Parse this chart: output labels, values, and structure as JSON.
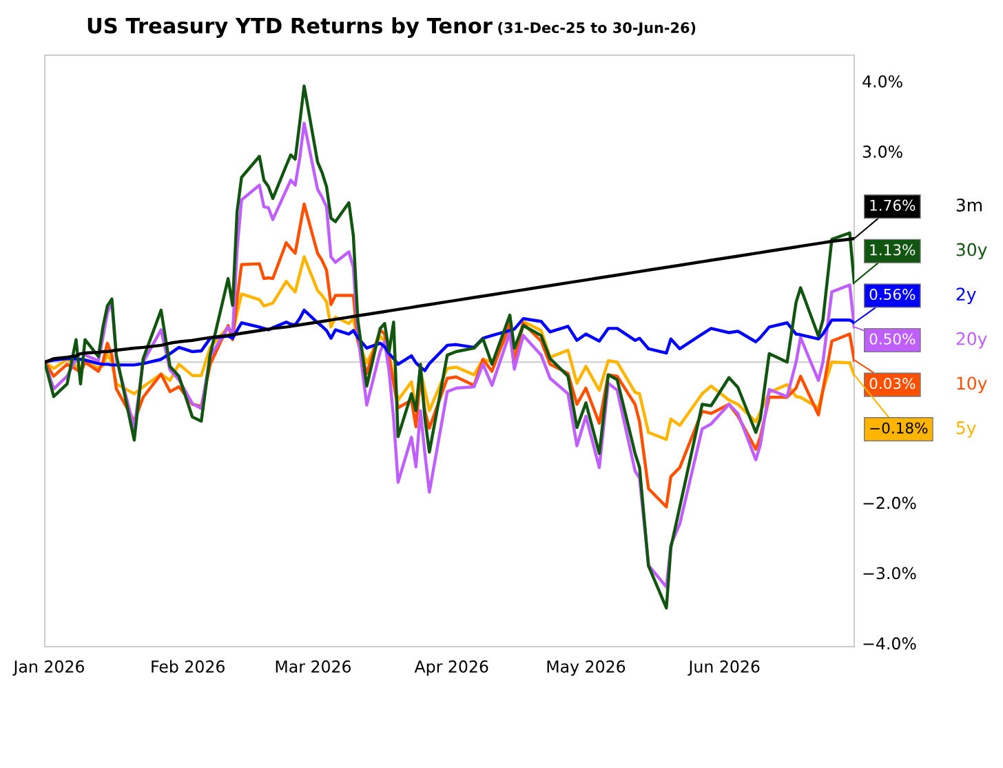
{
  "chart_data": {
    "type": "line",
    "title": "US Treasury YTD Returns by Tenor",
    "subtitle": "(31-Dec-25 to 30-Jun-26)",
    "x": [
      "2025-12-31",
      "2026-01-02",
      "2026-01-05",
      "2026-01-07",
      "2026-01-08",
      "2026-01-09",
      "2026-01-12",
      "2026-01-13",
      "2026-01-14",
      "2026-01-15",
      "2026-01-16",
      "2026-01-20",
      "2026-01-22",
      "2026-01-26",
      "2026-01-28",
      "2026-01-30",
      "2026-02-02",
      "2026-02-04",
      "2026-02-06",
      "2026-02-10",
      "2026-02-11",
      "2026-02-12",
      "2026-02-13",
      "2026-02-17",
      "2026-02-18",
      "2026-02-19",
      "2026-02-20",
      "2026-02-23",
      "2026-02-24",
      "2026-02-25",
      "2026-02-26",
      "2026-02-27",
      "2026-03-02",
      "2026-03-03",
      "2026-03-04",
      "2026-03-05",
      "2026-03-06",
      "2026-03-09",
      "2026-03-10",
      "2026-03-11",
      "2026-03-13",
      "2026-03-16",
      "2026-03-17",
      "2026-03-18",
      "2026-03-19",
      "2026-03-20",
      "2026-03-23",
      "2026-03-24",
      "2026-03-25",
      "2026-03-26",
      "2026-03-27",
      "2026-03-31",
      "2026-04-02",
      "2026-04-06",
      "2026-04-08",
      "2026-04-10",
      "2026-04-14",
      "2026-04-15",
      "2026-04-17",
      "2026-04-21",
      "2026-04-23",
      "2026-04-27",
      "2026-04-29",
      "2026-05-01",
      "2026-05-04",
      "2026-05-06",
      "2026-05-08",
      "2026-05-12",
      "2026-05-13",
      "2026-05-15",
      "2026-05-19",
      "2026-05-20",
      "2026-05-22",
      "2026-05-27",
      "2026-05-29",
      "2026-06-02",
      "2026-06-04",
      "2026-06-08",
      "2026-06-09",
      "2026-06-11",
      "2026-06-15",
      "2026-06-17",
      "2026-06-18",
      "2026-06-22",
      "2026-06-23",
      "2026-06-25",
      "2026-06-29",
      "2026-06-30"
    ],
    "series": [
      {
        "name": "3m",
        "color": "#000000",
        "values": [
          0,
          0.05,
          0.07,
          0.09,
          0.12,
          0.13,
          0.14,
          0.15,
          0.15,
          0.16,
          0.17,
          0.2,
          0.21,
          0.24,
          0.27,
          0.29,
          0.31,
          0.33,
          0.35,
          0.38,
          0.39,
          0.4,
          0.41,
          0.45,
          0.46,
          0.47,
          0.48,
          0.5,
          0.51,
          0.52,
          0.53,
          0.54,
          0.57,
          0.58,
          0.59,
          0.6,
          0.61,
          0.64,
          0.65,
          0.66,
          0.68,
          0.71,
          0.72,
          0.73,
          0.74,
          0.75,
          0.78,
          0.79,
          0.8,
          0.81,
          0.82,
          0.86,
          0.88,
          0.92,
          0.94,
          0.96,
          1.0,
          1.01,
          1.03,
          1.07,
          1.09,
          1.13,
          1.15,
          1.17,
          1.2,
          1.22,
          1.24,
          1.28,
          1.29,
          1.31,
          1.35,
          1.36,
          1.38,
          1.43,
          1.45,
          1.49,
          1.51,
          1.55,
          1.56,
          1.58,
          1.62,
          1.64,
          1.65,
          1.69,
          1.7,
          1.72,
          1.75,
          1.76
        ]
      },
      {
        "name": "30y",
        "color": "#115511",
        "values": [
          0,
          -0.49,
          -0.31,
          0.32,
          -0.31,
          0.32,
          0.08,
          0.5,
          0.8,
          0.9,
          0.1,
          -1.11,
          0.05,
          0.74,
          -0.06,
          -0.2,
          -0.78,
          -0.84,
          0.11,
          1.19,
          0.81,
          2.14,
          2.63,
          2.93,
          2.59,
          2.5,
          2.33,
          2.8,
          2.95,
          2.89,
          3.4,
          3.93,
          2.85,
          2.7,
          2.5,
          2.05,
          2.0,
          2.27,
          1.8,
          0.6,
          -0.34,
          0.48,
          0.55,
          0.15,
          0.57,
          -1.06,
          -0.45,
          -0.69,
          -0.03,
          -0.8,
          -1.28,
          0.1,
          0.15,
          0.2,
          0.33,
          -0.03,
          0.67,
          0.2,
          0.52,
          0.38,
          0.05,
          -0.2,
          -0.93,
          -0.58,
          -1.3,
          -0.18,
          -0.25,
          -1.3,
          -1.5,
          -2.9,
          -3.5,
          -2.64,
          -2.06,
          -0.6,
          -0.62,
          -0.22,
          -0.36,
          -1.0,
          -0.81,
          0.12,
          0.0,
          0.85,
          1.06,
          0.37,
          0.6,
          1.75,
          1.84,
          1.13
        ]
      },
      {
        "name": "2y",
        "color": "#0000ff",
        "values": [
          0,
          0.03,
          0.05,
          0.05,
          0.04,
          0.03,
          -0.02,
          -0.03,
          -0.03,
          -0.04,
          -0.04,
          -0.04,
          -0.02,
          0.04,
          0.12,
          0.21,
          0.15,
          0.16,
          0.34,
          0.37,
          0.34,
          0.45,
          0.56,
          0.5,
          0.48,
          0.46,
          0.49,
          0.57,
          0.54,
          0.53,
          0.62,
          0.74,
          0.56,
          0.51,
          0.45,
          0.34,
          0.46,
          0.4,
          0.45,
          0.35,
          0.2,
          0.27,
          0.22,
          0.12,
          0.05,
          -0.03,
          0.09,
          -0.01,
          -0.07,
          -0.12,
          -0.02,
          0.24,
          0.25,
          0.21,
          0.34,
          0.38,
          0.45,
          0.47,
          0.62,
          0.58,
          0.43,
          0.51,
          0.31,
          0.4,
          0.3,
          0.48,
          0.48,
          0.31,
          0.34,
          0.19,
          0.13,
          0.33,
          0.19,
          0.4,
          0.48,
          0.42,
          0.44,
          0.29,
          0.35,
          0.5,
          0.56,
          0.4,
          0.39,
          0.33,
          0.4,
          0.6,
          0.6,
          0.56
        ]
      },
      {
        "name": "20y",
        "color": "#bf5fff",
        "values": [
          0,
          -0.38,
          -0.2,
          0.05,
          null,
          0.1,
          0.02,
          0.35,
          0.7,
          0.85,
          0.05,
          -0.94,
          0.0,
          0.46,
          -0.11,
          -0.25,
          -0.59,
          -0.66,
          0.08,
          0.5,
          0.4,
          1.6,
          2.31,
          2.52,
          2.21,
          2.2,
          2.03,
          2.45,
          2.59,
          2.52,
          2.9,
          3.4,
          2.46,
          2.35,
          2.21,
          1.5,
          1.42,
          1.57,
          1.35,
          0.4,
          -0.61,
          0.15,
          0.29,
          -0.13,
          -0.8,
          -1.71,
          -1.07,
          -1.49,
          -0.69,
          -1.3,
          -1.85,
          -0.42,
          -0.37,
          -0.35,
          -0.03,
          -0.33,
          0.42,
          -0.1,
          0.38,
          0.1,
          -0.23,
          -0.45,
          -1.19,
          -0.77,
          -1.5,
          -0.3,
          -0.4,
          -1.55,
          -1.65,
          -2.89,
          -3.2,
          -2.6,
          -2.3,
          -0.95,
          -0.88,
          -0.6,
          -0.73,
          -1.39,
          -1.18,
          -0.39,
          -0.49,
          0.0,
          0.35,
          -0.26,
          0.0,
          1.0,
          1.1,
          0.5
        ]
      },
      {
        "name": "10y",
        "color": "#ff5000",
        "values": [
          0,
          -0.2,
          -0.03,
          -0.1,
          -0.15,
          0.0,
          -0.13,
          0.0,
          0.27,
          0.1,
          -0.38,
          -0.84,
          -0.5,
          -0.17,
          -0.42,
          -0.35,
          -0.6,
          -0.63,
          -0.03,
          0.52,
          0.32,
          0.9,
          1.39,
          1.4,
          1.19,
          1.2,
          1.19,
          1.7,
          1.62,
          1.55,
          1.9,
          2.25,
          1.55,
          1.45,
          1.31,
          0.82,
          0.95,
          0.95,
          0.95,
          0.3,
          -0.16,
          0.46,
          0.4,
          0.06,
          -0.3,
          -0.65,
          -0.54,
          -0.92,
          -0.2,
          -0.7,
          -0.94,
          -0.23,
          -0.21,
          -0.33,
          0.04,
          -0.13,
          0.55,
          0.0,
          0.55,
          0.3,
          -0.03,
          -0.16,
          -0.6,
          -0.37,
          -0.87,
          -0.18,
          -0.2,
          -0.6,
          -0.85,
          -1.8,
          -2.06,
          -1.63,
          -1.5,
          -0.7,
          -0.73,
          -0.6,
          -0.77,
          -1.24,
          -1.07,
          -0.5,
          -0.5,
          -0.37,
          -0.2,
          -0.75,
          -0.4,
          0.3,
          0.4,
          0.03
        ]
      },
      {
        "name": "5y",
        "color": "#ffb400",
        "values": [
          0,
          -0.09,
          0.04,
          -0.05,
          -0.08,
          0.0,
          -0.08,
          -0.05,
          0.11,
          0.0,
          -0.31,
          -0.45,
          -0.35,
          -0.17,
          -0.26,
          -0.03,
          -0.19,
          -0.19,
          0.21,
          0.5,
          0.4,
          0.7,
          0.97,
          0.89,
          0.8,
          0.82,
          0.84,
          1.15,
          1.07,
          1.0,
          1.25,
          1.5,
          1.02,
          0.95,
          0.86,
          0.5,
          0.64,
          0.55,
          0.62,
          0.3,
          -0.01,
          0.37,
          0.3,
          0.1,
          -0.2,
          -0.54,
          -0.28,
          -0.65,
          -0.12,
          -0.4,
          -0.69,
          -0.09,
          -0.07,
          -0.18,
          0.04,
          0.0,
          0.44,
          0.1,
          0.58,
          0.45,
          0.07,
          0.17,
          -0.3,
          -0.06,
          -0.4,
          0.02,
          0.0,
          -0.43,
          -0.45,
          -1.0,
          -1.1,
          -0.81,
          -0.9,
          -0.45,
          -0.34,
          -0.54,
          -0.6,
          -0.85,
          -0.71,
          -0.43,
          -0.32,
          -0.49,
          -0.5,
          -0.65,
          -0.4,
          0.0,
          -0.01,
          -0.18
        ]
      }
    ],
    "annotations": [
      {
        "text": "1.76%",
        "x": "2026-06-30",
        "y": 1.76
      },
      {
        "text": "1.13%",
        "x": "2026-06-30",
        "y": 1.13
      },
      {
        "text": "0.56%",
        "x": "2026-06-30",
        "y": 0.56
      },
      {
        "text": "0.50%",
        "x": "2026-06-30",
        "y": 0.5
      },
      {
        "text": "0.03%",
        "x": "2026-06-30",
        "y": 0.03
      },
      {
        "text": "−0.18%",
        "x": "2026-06-30",
        "y": -0.18
      }
    ],
    "xlim": [
      "2025-12-31",
      "2026-06-30"
    ],
    "xticks": [
      {
        "value": "2026-01-01",
        "label": "Jan 2026"
      },
      {
        "value": "2026-02-01",
        "label": "Feb 2026"
      },
      {
        "value": "2026-03-01",
        "label": "Mar 2026"
      },
      {
        "value": "2026-04-01",
        "label": "Apr 2026"
      },
      {
        "value": "2026-05-01",
        "label": "May 2026"
      },
      {
        "value": "2026-06-01",
        "label": "Jun 2026"
      }
    ],
    "ylim": [
      -4.05,
      4.37
    ],
    "yticks": [
      {
        "value": 4,
        "label": "4.0%"
      },
      {
        "value": 3,
        "label": "3.0%"
      },
      {
        "value": -2,
        "label": "−2.0%"
      },
      {
        "value": -3,
        "label": "−3.0%"
      },
      {
        "value": -4,
        "label": "−4.0%"
      }
    ],
    "ref_lines": [
      {
        "axis": "y",
        "value": 0,
        "label": null,
        "color": "#cccccc"
      }
    ],
    "grid": false,
    "legend": "right",
    "marker": "none",
    "line_style": "solid"
  }
}
